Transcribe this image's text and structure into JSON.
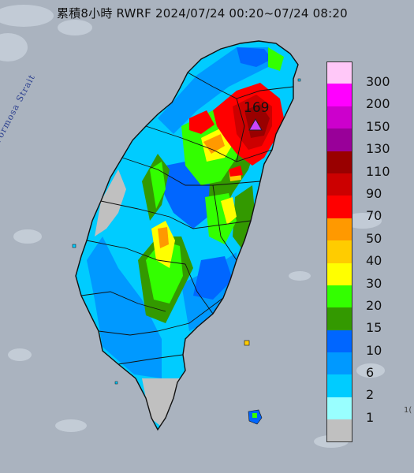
{
  "title": "累積8小時 RWRF 2024/07/24 00:20~07/24 08:20",
  "sea_label": "Formosa Strait",
  "max_value_label": "169",
  "corner_text": "1(",
  "legend": [
    {
      "label": "300",
      "color": "#ffc8f8"
    },
    {
      "label": "200",
      "color": "#ff00ff"
    },
    {
      "label": "150",
      "color": "#cc00cc"
    },
    {
      "label": "130",
      "color": "#990099"
    },
    {
      "label": "110",
      "color": "#990000"
    },
    {
      "label": "90",
      "color": "#cc0000"
    },
    {
      "label": "70",
      "color": "#ff0000"
    },
    {
      "label": "50",
      "color": "#ff9900"
    },
    {
      "label": "40",
      "color": "#ffcc00"
    },
    {
      "label": "30",
      "color": "#ffff00"
    },
    {
      "label": "20",
      "color": "#33ff00"
    },
    {
      "label": "15",
      "color": "#339900"
    },
    {
      "label": "10",
      "color": "#0066ff"
    },
    {
      "label": "6",
      "color": "#0099ff"
    },
    {
      "label": "2",
      "color": "#00ccff"
    },
    {
      "label": "1",
      "color": "#99ffff"
    },
    {
      "label": "",
      "color": "#c0c0c0"
    }
  ],
  "colors": {
    "sea": "#aab3bf",
    "max_marker": "#cc44ff"
  }
}
